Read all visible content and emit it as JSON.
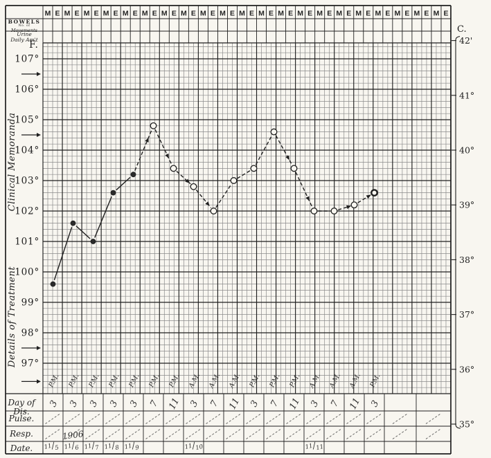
{
  "page": {
    "background": "#f8f6f0",
    "ink": "#1f1f1f",
    "light_line": "#8a8a8a",
    "hand_ink": "#2e2e2e"
  },
  "chart_data": {
    "type": "line",
    "unit_left": "F.",
    "unit_right": "C.",
    "fahrenheit_ticks": [
      107,
      106,
      105,
      104,
      103,
      102,
      101,
      100,
      99,
      98,
      97
    ],
    "fahrenheit_arrow_marks": [
      106.5,
      104.5,
      97.5,
      96.4
    ],
    "celsius_ticks": [
      {
        "value": 42,
        "label": "42'"
      },
      {
        "value": 41,
        "label": "41°"
      },
      {
        "value": 40,
        "label": "40°"
      },
      {
        "value": 39,
        "label": "39°"
      },
      {
        "value": 38,
        "label": "38°"
      },
      {
        "value": 37,
        "label": "37°"
      },
      {
        "value": 36,
        "label": "36°"
      },
      {
        "value": 35,
        "label": "35°"
      }
    ],
    "day_halves": [
      "M",
      "E"
    ],
    "day_half_repeat": 21,
    "left_header": {
      "bowels_line1": "BOWELS",
      "bowels_line2": "No. of",
      "bowels_line3": "Movements",
      "urine_line1": "Urine",
      "urine_line2": "Daily Am't"
    },
    "sections": {
      "upper": "Clinical Memoranda",
      "lower": "Details of Treatment"
    },
    "row_labels": {
      "day_of_disease": "Day of Dis.",
      "pulse": "Pulse.",
      "resp": "Resp.",
      "date": "Date."
    },
    "year": "1906",
    "ylim_f": [
      96,
      107.5
    ],
    "grid": true,
    "observations": [
      {
        "date": "11/5",
        "hour": "3",
        "meridiem": "P.M.",
        "temp_f": 99.6,
        "marker": "filled"
      },
      {
        "date": "11/6",
        "hour": "3",
        "meridiem": "P.M.",
        "temp_f": 101.6,
        "marker": "filled"
      },
      {
        "date": "11/7",
        "hour": "3",
        "meridiem": "P.M.",
        "temp_f": 101.0,
        "marker": "filled"
      },
      {
        "date": "11/8",
        "hour": "3",
        "meridiem": "P.M.",
        "temp_f": 102.6,
        "marker": "filled"
      },
      {
        "date": "11/9",
        "hour": "3",
        "meridiem": "P.M.",
        "temp_f": 103.2,
        "marker": "filled"
      },
      {
        "hour": "7",
        "meridiem": "P.M.",
        "temp_f": 104.8,
        "marker": "open"
      },
      {
        "hour": "11",
        "meridiem": "P.M.",
        "temp_f": 103.4,
        "marker": "open"
      },
      {
        "date": "11/10",
        "hour": "3",
        "meridiem": "A.M.",
        "temp_f": 102.8,
        "marker": "open"
      },
      {
        "hour": "7",
        "meridiem": "A.M.",
        "temp_f": 102.0,
        "marker": "open"
      },
      {
        "hour": "11",
        "meridiem": "A.M.",
        "temp_f": 103.0,
        "marker": "open"
      },
      {
        "hour": "3",
        "meridiem": "P.M.",
        "temp_f": 103.4,
        "marker": "open"
      },
      {
        "hour": "7",
        "meridiem": "P.M.",
        "temp_f": 104.6,
        "marker": "open"
      },
      {
        "hour": "11",
        "meridiem": "P.M.",
        "temp_f": 103.4,
        "marker": "open"
      },
      {
        "date": "11/11",
        "hour": "3",
        "meridiem": "A.M.",
        "temp_f": 102.0,
        "marker": "open"
      },
      {
        "hour": "7",
        "meridiem": "A.M.",
        "temp_f": 102.0,
        "marker": "open"
      },
      {
        "hour": "11",
        "meridiem": "A.M.",
        "temp_f": 102.2,
        "marker": "open"
      },
      {
        "hour": "3",
        "meridiem": "P.M.",
        "temp_f": 102.6,
        "marker": "bold"
      }
    ]
  }
}
